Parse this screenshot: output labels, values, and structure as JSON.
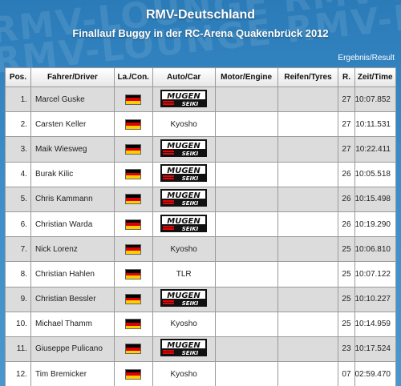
{
  "header": {
    "title": "RMV-Deutschland",
    "subtitle": "Finallauf Buggy in der RC-Arena Quakenbrück 2012",
    "result_label": "Ergebnis/Result",
    "bg_watermark": "RMV-LOUNGE RMV-LOUNGE"
  },
  "columns": [
    "Pos.",
    "Fahrer/Driver",
    "La./Con.",
    "Auto/Car",
    "Motor/Engine",
    "Reifen/Tyres",
    "R.",
    "Zeit/Time"
  ],
  "rows": [
    {
      "pos": "1.",
      "driver": "Marcel Guske",
      "flag": "de-flag-icon",
      "car": "MUGEN SEIKI",
      "car_logo": true,
      "motor": "",
      "tyres": "",
      "laps": "27",
      "time": "10:07.852"
    },
    {
      "pos": "2.",
      "driver": "Carsten Keller",
      "flag": "de-flag-icon",
      "car": "Kyosho",
      "car_logo": false,
      "motor": "",
      "tyres": "",
      "laps": "27",
      "time": "10:11.531"
    },
    {
      "pos": "3.",
      "driver": "Maik Wiesweg",
      "flag": "de-flag-icon",
      "car": "MUGEN SEIKI",
      "car_logo": true,
      "motor": "",
      "tyres": "",
      "laps": "27",
      "time": "10:22.411"
    },
    {
      "pos": "4.",
      "driver": "Burak Kilic",
      "flag": "de-flag-icon",
      "car": "MUGEN SEIKI",
      "car_logo": true,
      "motor": "",
      "tyres": "",
      "laps": "26",
      "time": "10:05.518"
    },
    {
      "pos": "5.",
      "driver": "Chris Kammann",
      "flag": "de-flag-icon",
      "car": "MUGEN SEIKI",
      "car_logo": true,
      "motor": "",
      "tyres": "",
      "laps": "26",
      "time": "10:15.498"
    },
    {
      "pos": "6.",
      "driver": "Christian Warda",
      "flag": "de-flag-icon",
      "car": "MUGEN SEIKI",
      "car_logo": true,
      "motor": "",
      "tyres": "",
      "laps": "26",
      "time": "10:19.290"
    },
    {
      "pos": "7.",
      "driver": "Nick Lorenz",
      "flag": "de-flag-icon",
      "car": "Kyosho",
      "car_logo": false,
      "motor": "",
      "tyres": "",
      "laps": "25",
      "time": "10:06.810"
    },
    {
      "pos": "8.",
      "driver": "Christian Hahlen",
      "flag": "de-flag-icon",
      "car": "TLR",
      "car_logo": false,
      "motor": "",
      "tyres": "",
      "laps": "25",
      "time": "10:07.122"
    },
    {
      "pos": "9.",
      "driver": "Christian Bessler",
      "flag": "de-flag-icon",
      "car": "MUGEN SEIKI",
      "car_logo": true,
      "motor": "",
      "tyres": "",
      "laps": "25",
      "time": "10:10.227"
    },
    {
      "pos": "10.",
      "driver": "Michael Thamm",
      "flag": "de-flag-icon",
      "car": "Kyosho",
      "car_logo": false,
      "motor": "",
      "tyres": "",
      "laps": "25",
      "time": "10:14.959"
    },
    {
      "pos": "11.",
      "driver": "Giuseppe Pulicano",
      "flag": "de-flag-icon",
      "car": "MUGEN SEIKI",
      "car_logo": true,
      "motor": "",
      "tyres": "",
      "laps": "23",
      "time": "10:17.524"
    },
    {
      "pos": "12.",
      "driver": "Tim Bremicker",
      "flag": "de-flag-icon",
      "car": "Kyosho",
      "car_logo": false,
      "motor": "",
      "tyres": "",
      "laps": "07",
      "time": "02:59.470"
    }
  ],
  "colors": {
    "row_alt": "#dcdcdc",
    "row_base": "#ffffff",
    "bg": "#3a8cc8"
  }
}
